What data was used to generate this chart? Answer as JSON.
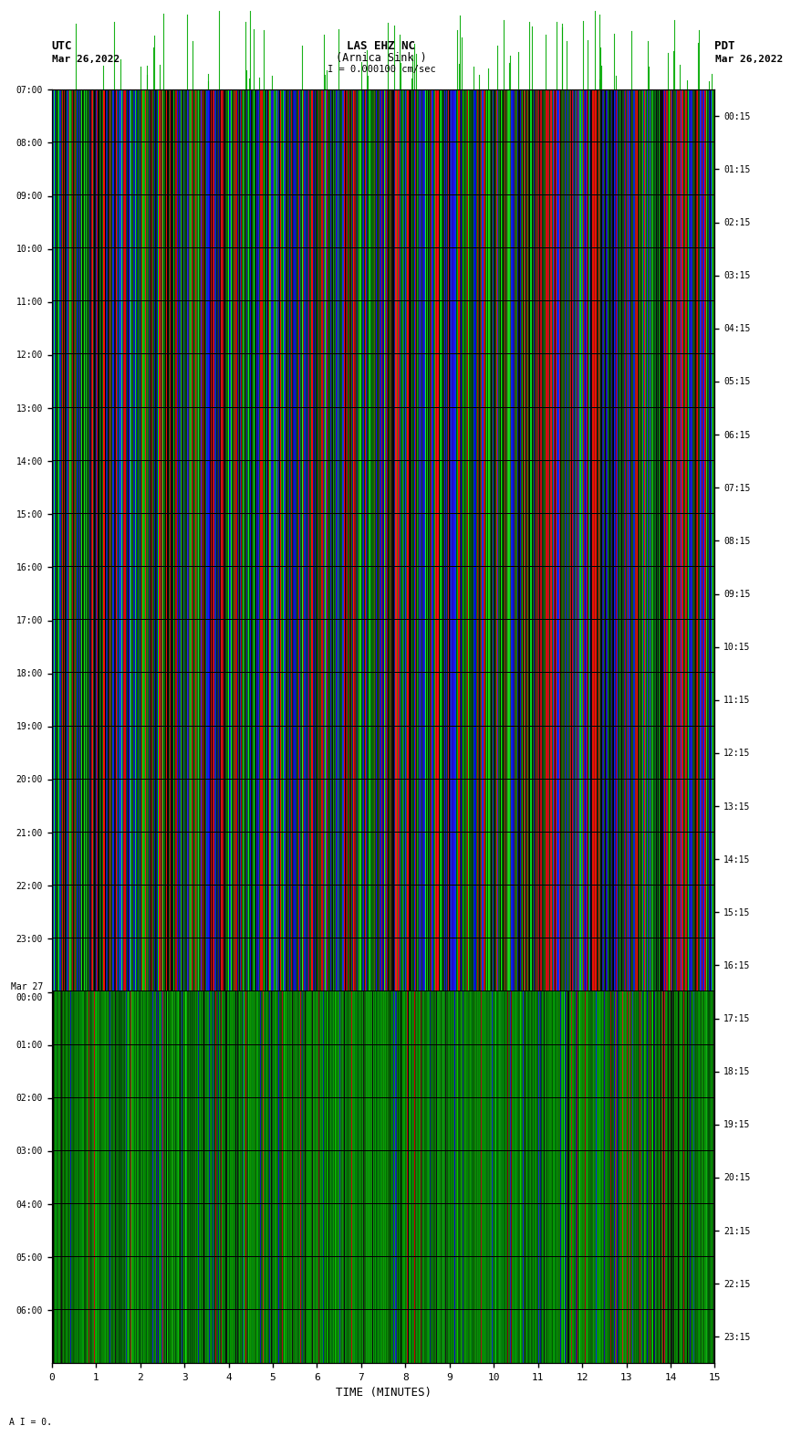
{
  "title_line1": "LAS EHZ NC",
  "title_line2": "(Arnica Sink )",
  "title_line3": "I = 0.000100 cm/sec",
  "utc_label": "UTC",
  "utc_date": "Mar 26,2022",
  "pdt_label": "PDT",
  "pdt_date": "Mar 26,2022",
  "left_times": [
    "07:00",
    "08:00",
    "09:00",
    "10:00",
    "11:00",
    "12:00",
    "13:00",
    "14:00",
    "15:00",
    "16:00",
    "17:00",
    "18:00",
    "19:00",
    "20:00",
    "21:00",
    "22:00",
    "23:00",
    "Mar 27\n00:00",
    "01:00",
    "02:00",
    "03:00",
    "04:00",
    "05:00",
    "06:00"
  ],
  "right_times": [
    "00:15",
    "01:15",
    "02:15",
    "03:15",
    "04:15",
    "05:15",
    "06:15",
    "07:15",
    "08:15",
    "09:15",
    "10:15",
    "11:15",
    "12:15",
    "13:15",
    "14:15",
    "15:15",
    "16:15",
    "17:15",
    "18:15",
    "19:15",
    "20:15",
    "21:15",
    "22:15",
    "23:15"
  ],
  "xlabel": "TIME (MINUTES)",
  "xticks": [
    0,
    1,
    2,
    3,
    4,
    5,
    6,
    7,
    8,
    9,
    10,
    11,
    12,
    13,
    14,
    15
  ],
  "n_time_rows": 24,
  "colorful_rows": 17,
  "fig_width": 8.5,
  "fig_height": 16.13,
  "dpi": 100,
  "fig_bg": "#ffffff",
  "text_color": "#000000",
  "seismo_bg": "#006400"
}
